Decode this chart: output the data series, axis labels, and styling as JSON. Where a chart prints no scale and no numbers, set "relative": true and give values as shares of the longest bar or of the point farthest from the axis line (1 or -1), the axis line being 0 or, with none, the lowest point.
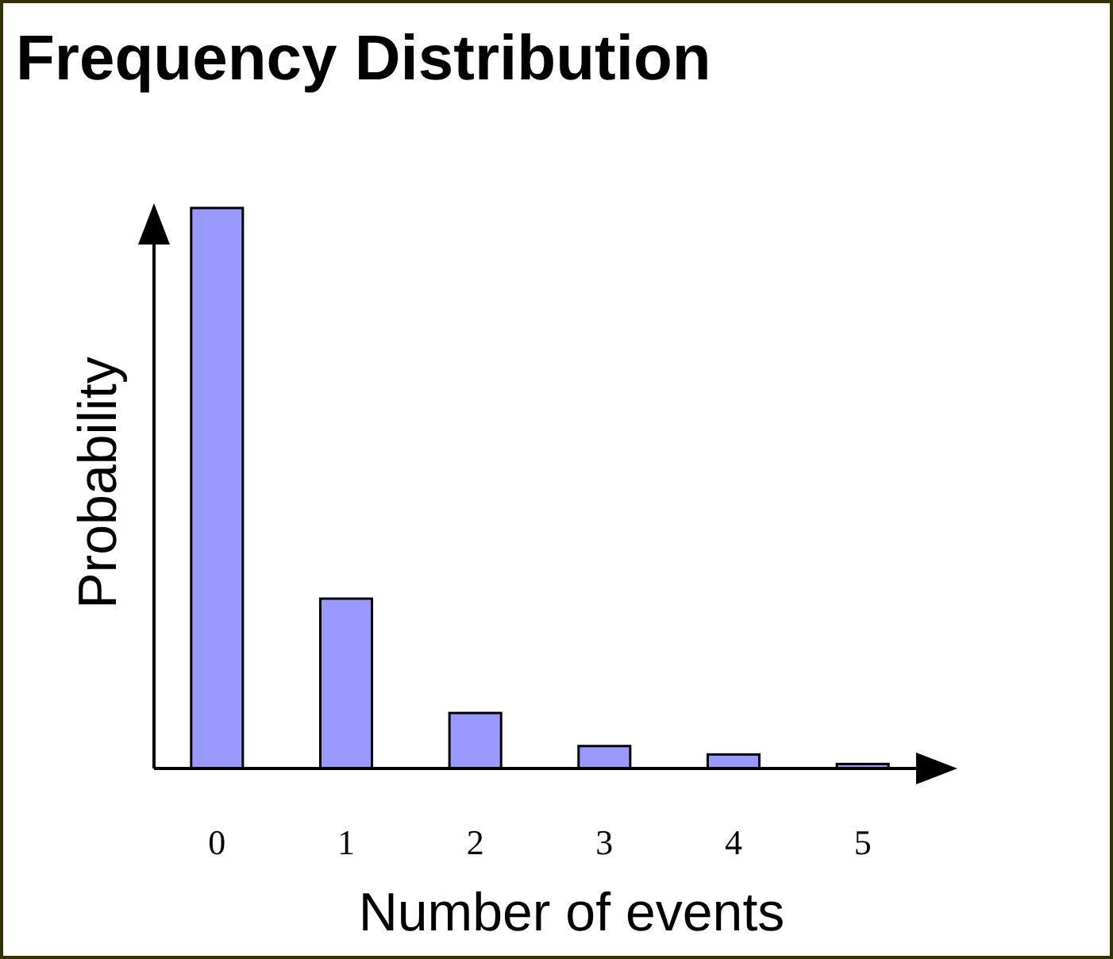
{
  "chart_data": {
    "type": "bar",
    "title": "Frequency Distribution",
    "xlabel": "Number of events",
    "ylabel": "Probability",
    "categories": [
      "0",
      "1",
      "2",
      "3",
      "4",
      "5"
    ],
    "values": [
      1,
      0.303,
      0.099,
      0.04,
      0.025,
      0.008
    ],
    "color": "#9999ff",
    "relative": true
  }
}
